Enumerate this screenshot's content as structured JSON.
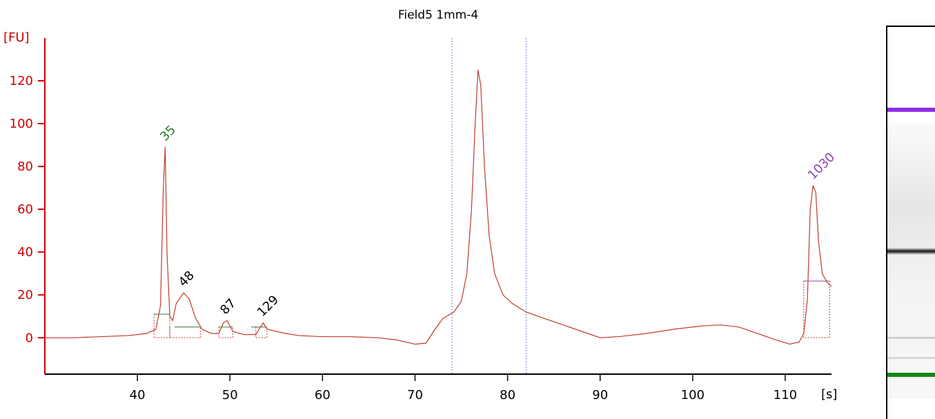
{
  "chart_data": {
    "type": "line",
    "title": "Field5 1mm-4",
    "ylabel": "[FU]",
    "xlabel": "[s]",
    "xlim": [
      30,
      115
    ],
    "ylim": [
      -17,
      140
    ],
    "x_ticks": [
      40,
      50,
      60,
      70,
      80,
      90,
      100,
      110
    ],
    "y_ticks": [
      0,
      20,
      40,
      60,
      80,
      100,
      120
    ],
    "grid": false,
    "colors": {
      "axis": "#cc0000",
      "trace": "#c0392b",
      "marker_lower": "#2e7d32",
      "marker_upper": "#8e44ad",
      "peak_label": "#000000",
      "divider": "#7f7fd5"
    },
    "series": [
      {
        "x": [
          30,
          33,
          36,
          39,
          41,
          42,
          42.5,
          42.8,
          43.0,
          43.2,
          43.5,
          43.8,
          44.2,
          45.0,
          45.6,
          46.3,
          47.0,
          48.0,
          48.8,
          49.3,
          49.7,
          50.3,
          51.5,
          52.8,
          53.3,
          53.6,
          54.0,
          55.0,
          56.0,
          57.5,
          60,
          63,
          66,
          68,
          70,
          71.2,
          72,
          73,
          74.2,
          75.0,
          75.6,
          76.1,
          76.5,
          76.8,
          77.1,
          77.5,
          78.0,
          78.6,
          79.5,
          80.5,
          82,
          84,
          86,
          88,
          90,
          92,
          95,
          98,
          101,
          103,
          105,
          107,
          109,
          110.5,
          111.5,
          112.0,
          112.4,
          112.7,
          113.0,
          113.3,
          113.6,
          114.0,
          114.5,
          115
        ],
        "y": [
          0,
          0,
          0.5,
          1,
          2,
          4,
          15,
          70,
          89,
          40,
          10,
          8,
          16,
          21,
          18,
          9,
          4,
          2,
          2,
          7,
          8,
          3,
          1.5,
          1.5,
          5,
          7,
          4,
          3,
          2,
          1,
          0.5,
          0.5,
          0,
          -1,
          -3,
          -2.5,
          3,
          9,
          12,
          17,
          30,
          60,
          100,
          125,
          118,
          80,
          48,
          30,
          20,
          16,
          12,
          9,
          6,
          3,
          0,
          0.5,
          2,
          4,
          5.5,
          6,
          5,
          2,
          -1,
          -3,
          -2,
          2,
          18,
          60,
          71,
          68,
          45,
          30,
          26,
          24
        ]
      }
    ],
    "peaks": [
      {
        "label": "35",
        "x": 43.0,
        "y": 89,
        "color": "marker_lower"
      },
      {
        "label": "48",
        "x": 45.0,
        "y": 21,
        "color": "peak_label"
      },
      {
        "label": "87",
        "x": 49.5,
        "y": 8,
        "color": "peak_label"
      },
      {
        "label": "129",
        "x": 53.5,
        "y": 7,
        "color": "peak_label"
      },
      {
        "label": "1030",
        "x": 113.0,
        "y": 71,
        "color": "marker_upper"
      }
    ],
    "dividers_x": [
      74,
      82
    ],
    "baselines": [
      {
        "x1": 41.8,
        "x2": 43.5,
        "y": 11,
        "dash_x1": 41.8,
        "dash_x2": 43.5,
        "color": "marker_lower"
      },
      {
        "x1": 44.0,
        "x2": 46.8,
        "y": 5,
        "dash_x1": 43.5,
        "dash_x2": 46.8,
        "color": "marker_lower"
      },
      {
        "x1": 48.8,
        "x2": 50.3,
        "y": 5,
        "dash_x1": 48.8,
        "dash_x2": 50.3,
        "color": "marker_lower"
      },
      {
        "x1": 52.3,
        "x2": 54.0,
        "y": 5,
        "dash_x1": 52.8,
        "dash_x2": 54.0,
        "color": "marker_lower"
      },
      {
        "x1": 112.0,
        "x2": 114.8,
        "y": 26.5,
        "dash_x1": 112.0,
        "dash_x2": 114.8,
        "color": "marker_upper"
      }
    ]
  },
  "gel": {
    "bands": [
      {
        "name": "upper-marker-band",
        "position": 0.21,
        "color": "#8e2de2",
        "intensity": 1.0
      },
      {
        "name": "main-band",
        "position": 0.57,
        "color": "#111111",
        "intensity": 1.0
      },
      {
        "name": "faint-band-1",
        "position": 0.79,
        "color": "#cfcfcf",
        "intensity": 0.4
      },
      {
        "name": "faint-band-2",
        "position": 0.84,
        "color": "#d8d8d8",
        "intensity": 0.4
      },
      {
        "name": "lower-marker-band",
        "position": 0.885,
        "color": "#138a13",
        "intensity": 1.0
      }
    ]
  }
}
